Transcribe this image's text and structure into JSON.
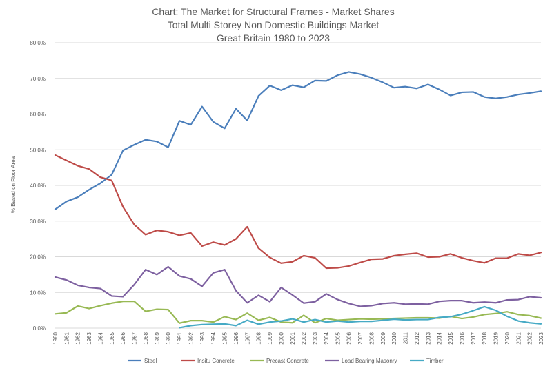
{
  "chart_data": {
    "type": "line",
    "title_lines": [
      "Chart: The Market for Structural Frames - Market Shares",
      "Total Multi Storey Non Domestic Buildings Market",
      "Great Britain 1980 to 2023"
    ],
    "xlabel": "",
    "ylabel": "% Based on Floor Area",
    "ylim": [
      0,
      80
    ],
    "y_ticks": [
      0,
      10,
      20,
      30,
      40,
      50,
      60,
      70,
      80
    ],
    "y_tick_labels": [
      "0.0%",
      "10.0%",
      "20.0%",
      "30.0%",
      "40.0%",
      "50.0%",
      "60.0%",
      "70.0%",
      "80.0%"
    ],
    "grid": true,
    "legend_position": "bottom",
    "x": [
      "1980",
      "1981",
      "1982",
      "1983",
      "1984",
      "1985",
      "1986",
      "1987",
      "1988",
      "1989",
      "1990",
      "1991",
      "1992",
      "1993",
      "1994",
      "1995",
      "1996",
      "1997",
      "1998",
      "1999",
      "2000",
      "2001",
      "2002",
      "2003",
      "2004",
      "2005",
      "2006",
      "2007",
      "2008",
      "2009",
      "2010",
      "2011",
      "2012",
      "2013",
      "2014",
      "2015",
      "2016",
      "2017",
      "2018",
      "2019",
      "2020",
      "2021",
      "2022",
      "2023"
    ],
    "series": [
      {
        "name": "Steel",
        "color": "#4a7ebb",
        "values": [
          33.3,
          35.5,
          36.7,
          38.8,
          40.6,
          43.0,
          49.8,
          51.4,
          52.8,
          52.3,
          50.7,
          58.1,
          57.0,
          62.1,
          57.8,
          56.0,
          61.5,
          58.2,
          65.1,
          68.0,
          66.7,
          68.1,
          67.5,
          69.4,
          69.3,
          70.9,
          71.8,
          71.2,
          70.2,
          68.9,
          67.4,
          67.7,
          67.2,
          68.3,
          66.9,
          65.2,
          66.1,
          66.2,
          64.8,
          64.4,
          64.8,
          65.5,
          65.9,
          66.4
        ]
      },
      {
        "name": "Insitu Concrete",
        "color": "#be4b48",
        "values": [
          48.5,
          47.0,
          45.5,
          44.6,
          42.3,
          41.4,
          34.0,
          29.0,
          26.2,
          27.4,
          27.0,
          26.0,
          26.7,
          23.0,
          24.1,
          23.3,
          25.0,
          28.4,
          22.4,
          19.8,
          18.2,
          18.6,
          20.3,
          19.7,
          16.8,
          16.9,
          17.4,
          18.4,
          19.3,
          19.4,
          20.3,
          20.7,
          21.0,
          19.9,
          20.0,
          20.8,
          19.7,
          18.9,
          18.3,
          19.6,
          19.6,
          20.8,
          20.4,
          21.2
        ]
      },
      {
        "name": "Precast Concrete",
        "color": "#98b954",
        "values": [
          4.0,
          4.3,
          6.2,
          5.5,
          6.3,
          7.0,
          7.5,
          7.5,
          4.7,
          5.3,
          5.2,
          1.4,
          2.1,
          2.1,
          1.7,
          3.2,
          2.4,
          4.2,
          2.2,
          3.0,
          1.7,
          1.5,
          3.6,
          1.5,
          2.7,
          2.2,
          2.4,
          2.6,
          2.5,
          2.6,
          2.7,
          2.8,
          2.9,
          2.9,
          2.8,
          3.3,
          2.7,
          3.1,
          3.8,
          4.1,
          4.6,
          3.8,
          3.5,
          2.8
        ]
      },
      {
        "name": "Load Bearing Masonry",
        "color": "#7d60a0",
        "values": [
          14.3,
          13.5,
          12.0,
          11.4,
          11.1,
          9.0,
          8.8,
          12.2,
          16.4,
          15.0,
          17.2,
          14.6,
          13.8,
          11.7,
          15.5,
          16.4,
          10.5,
          7.1,
          9.2,
          7.4,
          11.4,
          9.3,
          7.0,
          7.4,
          9.6,
          8.0,
          6.9,
          6.1,
          6.3,
          6.9,
          7.1,
          6.7,
          6.8,
          6.7,
          7.5,
          7.7,
          7.7,
          7.1,
          7.3,
          7.1,
          7.9,
          8.0,
          8.8,
          8.5
        ]
      },
      {
        "name": "Timber",
        "color": "#46aac5",
        "values": [
          null,
          null,
          null,
          null,
          null,
          null,
          null,
          null,
          null,
          null,
          null,
          0.1,
          0.7,
          1.0,
          1.1,
          1.2,
          0.7,
          2.2,
          1.1,
          1.7,
          2.0,
          2.6,
          1.7,
          2.4,
          1.7,
          2.0,
          1.7,
          1.9,
          1.9,
          2.2,
          2.5,
          2.3,
          2.4,
          2.4,
          3.0,
          3.2,
          3.9,
          4.9,
          6.0,
          5.0,
          3.3,
          2.0,
          1.5,
          1.2
        ]
      }
    ]
  }
}
